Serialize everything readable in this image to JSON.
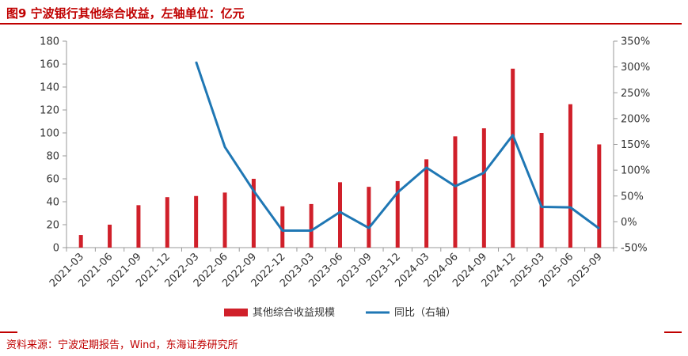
{
  "header": {
    "title": "图9  宁波银行其他综合收益，左轴单位：亿元"
  },
  "footer": {
    "source": "资料来源：宁波定期报告，Wind，东海证券研究所"
  },
  "colors": {
    "accent": "#c00000",
    "bar": "#d0202a",
    "line": "#1f77b4"
  },
  "chart_data": {
    "type": "bar+line",
    "categories": [
      "2021-03",
      "2021-06",
      "2021-09",
      "2021-12",
      "2022-03",
      "2022-06",
      "2022-09",
      "2022-12",
      "2023-03",
      "2023-06",
      "2023-09",
      "2023-12",
      "2024-03",
      "2024-06",
      "2024-09",
      "2024-12",
      "2025-03",
      "2025-06",
      "2025-09"
    ],
    "series": [
      {
        "name": "其他综合收益规模",
        "axis": "left",
        "type": "bar",
        "values": [
          11,
          20,
          37,
          44,
          45,
          48,
          60,
          36,
          38,
          57,
          53,
          58,
          77,
          97,
          104,
          156,
          100,
          125,
          90
        ]
      },
      {
        "name": "同比（右轴）",
        "axis": "right",
        "type": "line",
        "values": [
          null,
          null,
          null,
          null,
          310,
          145,
          60,
          -17,
          -17,
          19,
          -12,
          57,
          105,
          69,
          95,
          168,
          29,
          28,
          -13
        ]
      }
    ],
    "y_left": {
      "min": 0,
      "max": 180,
      "step": 20,
      "ticks": [
        "0",
        "20",
        "40",
        "60",
        "80",
        "100",
        "120",
        "140",
        "160",
        "180"
      ]
    },
    "y_right": {
      "min": -50,
      "max": 350,
      "step": 50,
      "ticks": [
        "-50%",
        "0%",
        "50%",
        "100%",
        "150%",
        "200%",
        "250%",
        "300%",
        "350%"
      ]
    },
    "legend": {
      "placement": "bottom"
    },
    "grid": false
  }
}
